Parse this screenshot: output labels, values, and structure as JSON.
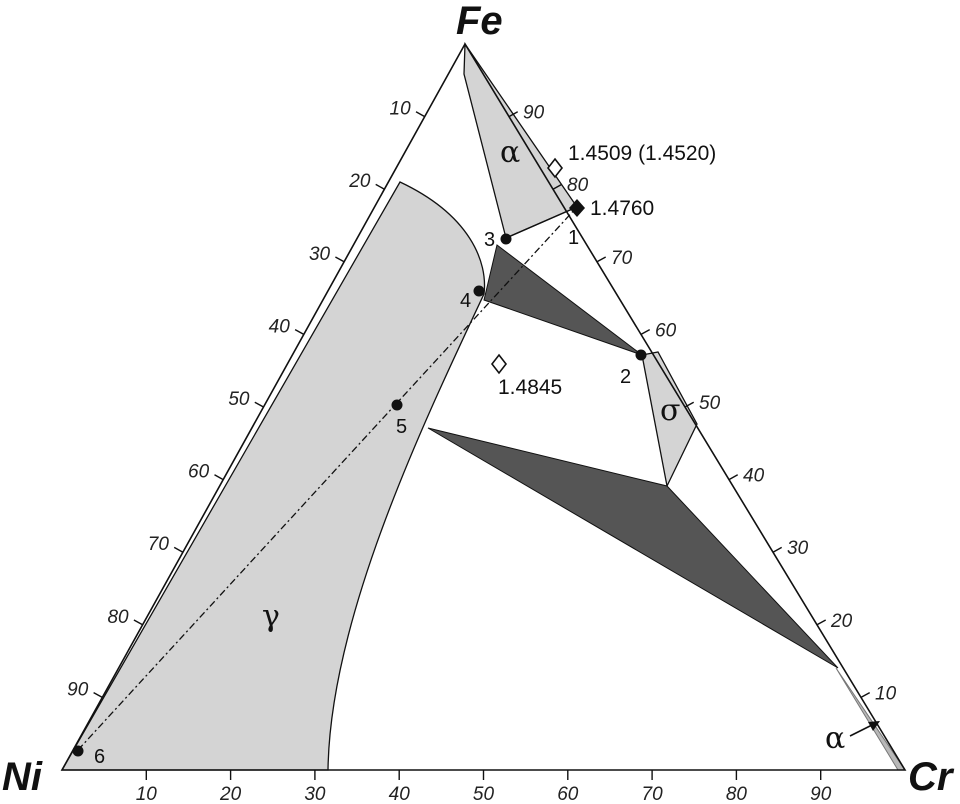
{
  "vertices": {
    "top": "Fe",
    "left": "Ni",
    "right": "Cr"
  },
  "ticks": [
    "10",
    "20",
    "30",
    "40",
    "50",
    "60",
    "70",
    "80",
    "90"
  ],
  "phases": {
    "alpha_top": "α",
    "sigma": "σ",
    "gamma": "γ",
    "alpha_corner": "α"
  },
  "points": [
    "1",
    "2",
    "3",
    "4",
    "5",
    "6"
  ],
  "values": {
    "v1": "1.4509 (1.4520)",
    "v2": "1.4760",
    "v3": "1.4845"
  },
  "colors": {
    "phase_fill": "#d4d4d4",
    "tie_fill": "#555555",
    "line": "#111111"
  }
}
